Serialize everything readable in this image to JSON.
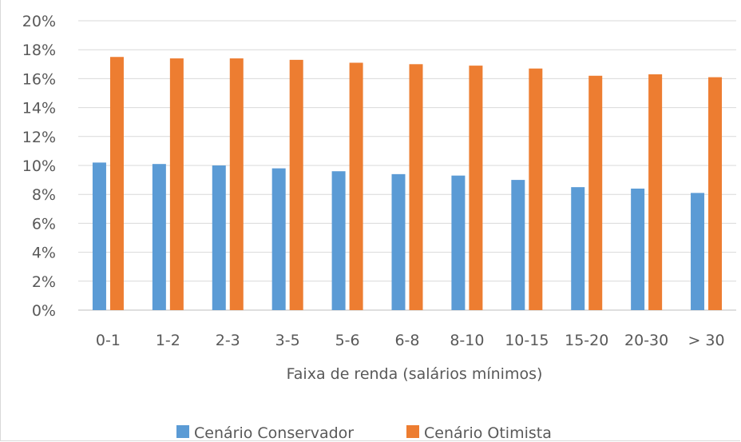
{
  "chart_data": {
    "type": "bar",
    "title": "",
    "xlabel": "Faixa de renda (salários mínimos)",
    "ylabel": "",
    "categories": [
      "0-1",
      "1-2",
      "2-3",
      "3-5",
      "5-6",
      "6-8",
      "8-10",
      "10-15",
      "15-20",
      "20-30",
      "> 30"
    ],
    "ylim": [
      0,
      20
    ],
    "yticks": [
      "0%",
      "2%",
      "4%",
      "6%",
      "8%",
      "10%",
      "12%",
      "14%",
      "16%",
      "18%",
      "20%"
    ],
    "grid": true,
    "legend_position": "bottom",
    "series": [
      {
        "name": "Cenário Conservador",
        "color": "#5b9bd5",
        "values": [
          10.2,
          10.1,
          10.0,
          9.8,
          9.6,
          9.4,
          9.3,
          9.0,
          8.5,
          8.4,
          8.1
        ]
      },
      {
        "name": "Cenário Otimista",
        "color": "#ed7d31",
        "values": [
          17.5,
          17.4,
          17.4,
          17.3,
          17.1,
          17.0,
          16.9,
          16.7,
          16.2,
          16.3,
          16.1
        ]
      }
    ]
  }
}
